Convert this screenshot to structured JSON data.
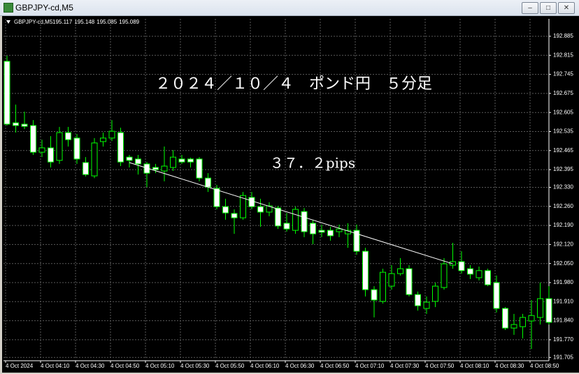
{
  "window_title": "GBPJPY-cd,M5",
  "chart_data": {
    "type": "candlestick",
    "symbol": "GBPJPY-cd,M5",
    "header_values": [
      195.117,
      195.148,
      195.085,
      195.089
    ],
    "title": "２０２４／１０／４　ポンド円　５分足",
    "annotation": "３７．２pips",
    "trendline_values": [
      192.421,
      192.049
    ],
    "categories": [
      "4 Oct 2024",
      null,
      null,
      null,
      "4 Oct 04:10",
      null,
      null,
      null,
      "4 Oct 04:30",
      null,
      null,
      null,
      "4 Oct 04:50",
      null,
      null,
      null,
      "4 Oct 05:10",
      null,
      null,
      null,
      "4 Oct 05:30",
      null,
      null,
      null,
      "4 Oct 05:50",
      null,
      null,
      null,
      "4 Oct 06:10",
      null,
      null,
      null,
      "4 Oct 06:30",
      null,
      null,
      null,
      "4 Oct 06:50",
      null,
      null,
      null,
      "4 Oct 07:10",
      null,
      null,
      null,
      "4 Oct 07:30",
      null,
      null,
      null,
      "4 Oct 07:50",
      null,
      null,
      null,
      "4 Oct 08:10",
      null,
      null,
      null,
      "4 Oct 08:30",
      null,
      null,
      null,
      "4 Oct 08:50",
      null,
      null
    ],
    "open": [
      192.793,
      192.567,
      192.562,
      192.557,
      192.459,
      192.475,
      192.429,
      192.531,
      192.511,
      192.421,
      192.372,
      192.498,
      192.511,
      192.531,
      192.441,
      192.434,
      192.416,
      192.403,
      192.39,
      192.403,
      192.434,
      192.434,
      192.434,
      192.364,
      192.326,
      192.259,
      192.234,
      192.218,
      192.293,
      192.259,
      192.239,
      192.254,
      192.198,
      192.172,
      192.241,
      192.198,
      192.172,
      192.172,
      192.167,
      192.159,
      192.172,
      192.095,
      191.954,
      191.911,
      191.967,
      192.013,
      192.031,
      191.936,
      191.885,
      191.911,
      191.962,
      192.044,
      192.057,
      192.031,
      191.998,
      192.024,
      191.98,
      191.885,
      191.813,
      191.818,
      191.839,
      191.852,
      191.921
    ],
    "high": [
      192.813,
      192.634,
      192.608,
      192.577,
      192.505,
      192.518,
      192.552,
      192.552,
      192.526,
      192.441,
      192.511,
      192.531,
      192.577,
      192.549,
      192.449,
      192.449,
      192.423,
      192.416,
      192.48,
      192.467,
      192.449,
      192.439,
      192.441,
      192.382,
      192.339,
      192.288,
      192.249,
      192.313,
      192.313,
      192.288,
      192.275,
      192.262,
      192.236,
      192.259,
      192.254,
      192.211,
      192.193,
      192.185,
      192.193,
      192.198,
      192.193,
      192.108,
      191.967,
      192.031,
      192.044,
      192.07,
      192.044,
      191.947,
      191.929,
      191.98,
      192.07,
      192.126,
      192.095,
      192.044,
      192.039,
      192.031,
      192.006,
      191.89,
      191.865,
      191.865,
      191.916,
      191.98,
      191.967
    ],
    "low": [
      192.557,
      192.531,
      192.544,
      192.449,
      192.441,
      192.403,
      192.416,
      192.48,
      192.416,
      192.37,
      192.364,
      192.48,
      192.5,
      192.408,
      192.403,
      192.377,
      192.331,
      192.382,
      192.352,
      192.39,
      192.416,
      192.403,
      192.352,
      192.313,
      192.249,
      192.211,
      192.159,
      192.211,
      192.249,
      192.185,
      192.224,
      192.177,
      192.167,
      192.159,
      192.147,
      192.121,
      192.147,
      192.134,
      192.147,
      192.108,
      192.082,
      191.929,
      191.852,
      191.903,
      191.954,
      192.006,
      191.929,
      191.877,
      191.865,
      191.89,
      191.954,
      192.031,
      192.013,
      191.993,
      191.988,
      191.967,
      191.87,
      191.806,
      191.788,
      191.775,
      191.736,
      191.826,
      191.826
    ],
    "close": [
      192.562,
      192.557,
      192.554,
      192.459,
      192.475,
      192.423,
      192.531,
      192.505,
      192.434,
      192.377,
      192.493,
      192.511,
      192.536,
      192.423,
      192.429,
      192.416,
      192.382,
      192.395,
      192.408,
      192.441,
      192.423,
      192.423,
      192.364,
      192.331,
      192.259,
      192.236,
      192.218,
      192.3,
      192.259,
      192.239,
      192.262,
      192.188,
      192.177,
      192.249,
      192.167,
      192.159,
      192.165,
      192.152,
      192.177,
      192.172,
      192.095,
      191.954,
      191.916,
      192.018,
      192.013,
      192.031,
      191.936,
      191.895,
      191.908,
      191.967,
      192.049,
      192.057,
      192.024,
      192.011,
      192.024,
      191.972,
      191.885,
      191.813,
      191.826,
      191.852,
      191.859,
      191.921,
      191.834
    ],
    "up_color": "#000000",
    "down_color": "#ffffff",
    "wick_color": "#00ff00",
    "trendline_color": "#ffffff",
    "ylim": [
      191.698,
      192.949
    ],
    "yticks": [
      192.885,
      192.815,
      192.745,
      192.675,
      192.605,
      192.535,
      192.465,
      192.395,
      {
        "value": 192.33,
        "label": "192.330"
      },
      {
        "value": 192.26,
        "label": "192.260"
      },
      {
        "value": 192.19,
        "label": "192.190"
      },
      {
        "value": 192.12,
        "label": "192.120"
      },
      {
        "value": 192.05,
        "label": "192.050"
      },
      {
        "value": 191.98,
        "label": "191.980"
      },
      {
        "value": 191.91,
        "label": "191.910"
      },
      {
        "value": 191.84,
        "label": "191.840"
      },
      {
        "value": 191.77,
        "label": "191.770"
      },
      191.705
    ],
    "grid": true
  }
}
